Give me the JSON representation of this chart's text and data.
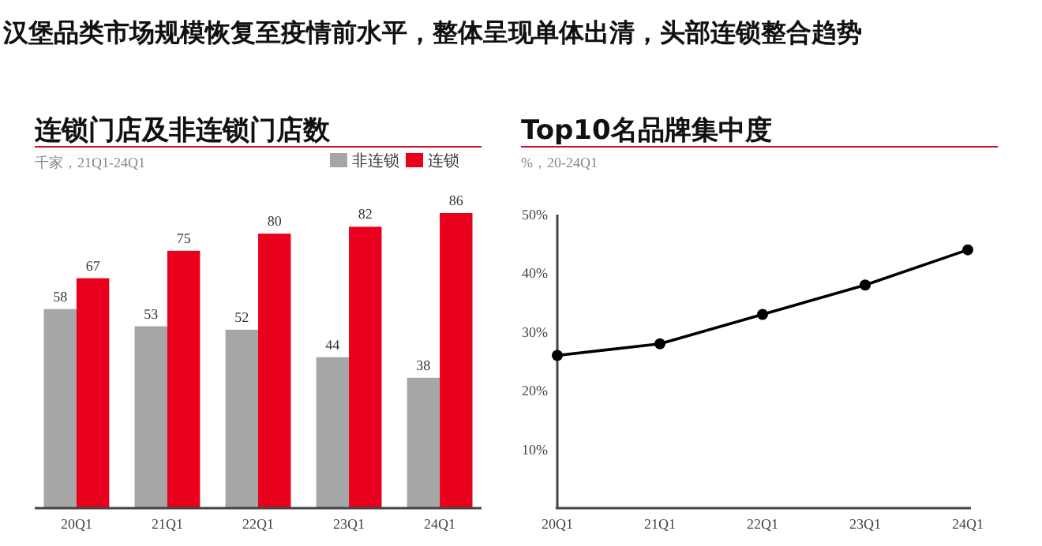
{
  "chart_data": [
    {
      "type": "other",
      "title": "汉堡品类市场规模恢复至疫情前水平，整体呈现单体出清，头部连锁整合趋势"
    },
    {
      "type": "bar",
      "title": "连锁门店及非连锁门店数",
      "subtitle": "千家，21Q1-24Q1",
      "categories": [
        "20Q1",
        "21Q1",
        "22Q1",
        "23Q1",
        "24Q1"
      ],
      "series": [
        {
          "name": "非连锁",
          "color": "#a6a6a6",
          "values": [
            58,
            53,
            52,
            44,
            38
          ]
        },
        {
          "name": "连锁",
          "color": "#e8001c",
          "values": [
            67,
            75,
            80,
            82,
            86
          ]
        }
      ],
      "data_labels": true,
      "legend": "top right",
      "relative": false
    },
    {
      "type": "line",
      "title": "Top10名品牌集中度",
      "subtitle": "%，20-24Q1",
      "categories": [
        "20Q1",
        "21Q1",
        "22Q1",
        "23Q1",
        "24Q1"
      ],
      "series": [
        {
          "color": "#000000",
          "values": [
            26,
            28,
            33,
            38,
            44
          ]
        }
      ],
      "ylim": [
        0,
        50
      ],
      "yticks": [
        {
          "value": 10,
          "label": "10%"
        },
        {
          "value": 20,
          "label": "20%"
        },
        {
          "value": 30,
          "label": "30%"
        },
        {
          "value": 40,
          "label": "40%"
        },
        {
          "value": 50,
          "label": "50%"
        }
      ],
      "marker": "circle",
      "grid": false
    }
  ]
}
